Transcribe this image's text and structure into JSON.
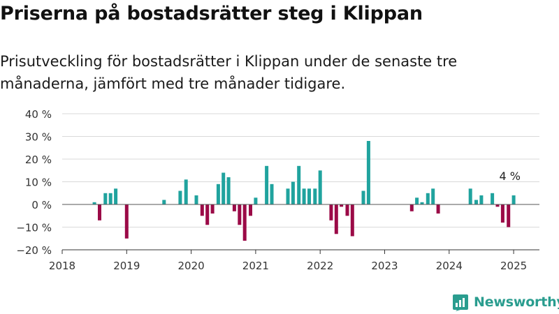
{
  "title": "Priserna på bostadsrätter steg i Klippan",
  "subtitle": "Prisutveckling för bostadsrätter i Klippan under de senaste tre månaderna, jämfört med tre månader tidigare.",
  "brand": {
    "name": "Newsworthy",
    "color": "#2a9d8f"
  },
  "chart_data": {
    "type": "bar",
    "title": "",
    "xlabel": "",
    "ylabel": "",
    "ylim": [
      -20,
      40
    ],
    "xlim": [
      2018.0,
      2025.4
    ],
    "grid": true,
    "yticks": [
      -20,
      -10,
      0,
      10,
      20,
      30,
      40
    ],
    "ytick_labels": [
      "−20 %",
      "−10 %",
      "0 %",
      "10 %",
      "20 %",
      "30 %",
      "40 %"
    ],
    "xticks": [
      2018,
      2019,
      2020,
      2021,
      2022,
      2023,
      2024,
      2025
    ],
    "xtick_labels": [
      "2018",
      "2019",
      "2020",
      "2021",
      "2022",
      "2023",
      "2024",
      "2025"
    ],
    "colors": {
      "positive": "#20a39e",
      "negative": "#9b0a47"
    },
    "annotation": {
      "text": "4 %",
      "x": 2024.92,
      "y": 4
    },
    "x": [
      2018.5,
      2018.58,
      2018.67,
      2018.75,
      2018.83,
      2019.0,
      2019.58,
      2019.83,
      2019.92,
      2020.08,
      2020.17,
      2020.25,
      2020.33,
      2020.42,
      2020.5,
      2020.58,
      2020.67,
      2020.75,
      2020.83,
      2020.92,
      2021.0,
      2021.17,
      2021.25,
      2021.5,
      2021.58,
      2021.67,
      2021.75,
      2021.83,
      2021.92,
      2022.0,
      2022.17,
      2022.25,
      2022.33,
      2022.42,
      2022.5,
      2022.67,
      2022.75,
      2023.42,
      2023.5,
      2023.58,
      2023.67,
      2023.75,
      2023.83,
      2024.33,
      2024.42,
      2024.5,
      2024.67,
      2024.75,
      2024.83,
      2024.92,
      2025.0
    ],
    "values": [
      1,
      -7,
      5,
      5,
      7,
      -15,
      2,
      6,
      11,
      4,
      -5,
      -9,
      -4,
      9,
      14,
      12,
      -3,
      -9,
      -16,
      -5,
      3,
      17,
      9,
      7,
      10,
      17,
      7,
      7,
      7,
      15,
      -7,
      -13,
      -1,
      -5,
      -14,
      6,
      28,
      -3,
      3,
      1,
      5,
      7,
      -4,
      7,
      2,
      4,
      5,
      -1,
      -8,
      -10,
      4
    ]
  }
}
